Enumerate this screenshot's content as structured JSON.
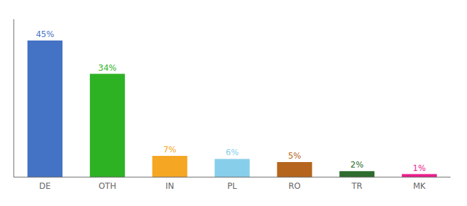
{
  "chart_data": {
    "type": "bar",
    "categories": [
      "DE",
      "OTH",
      "IN",
      "PL",
      "RO",
      "TR",
      "MK"
    ],
    "values": [
      45,
      34,
      7,
      6,
      5,
      2,
      1
    ],
    "value_labels": [
      "45%",
      "34%",
      "7%",
      "6%",
      "5%",
      "2%",
      "1%"
    ],
    "colors": [
      "#4472C4",
      "#2DB224",
      "#F5A623",
      "#87CEEB",
      "#B5651D",
      "#2E6B2E",
      "#E91E8C"
    ],
    "ylim": [
      0,
      52
    ],
    "data_labels": true,
    "tick_labels": "x",
    "grid": false
  }
}
